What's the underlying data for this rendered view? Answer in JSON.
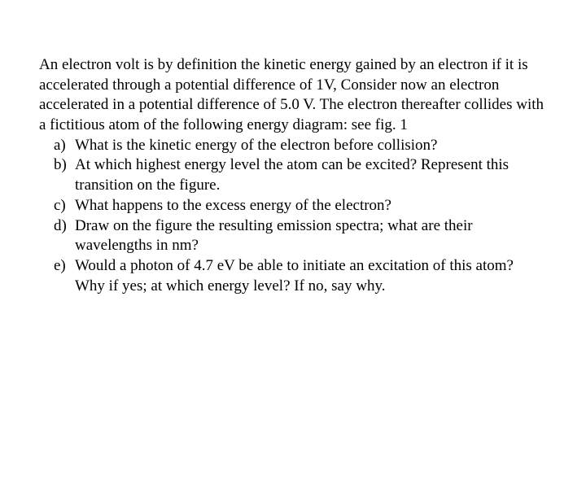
{
  "intro": "An electron volt is by definition the kinetic energy gained by an electron if it is accelerated through a potential difference of 1V, Consider now an electron accelerated in a potential difference of 5.0 V. The electron thereafter collides with a fictitious atom of the following energy diagram: see fig. 1",
  "items": {
    "a": {
      "marker": "a)",
      "text": "What is the kinetic energy of the electron before collision?"
    },
    "b": {
      "marker": "b)",
      "text": "At which highest energy level the atom can be excited? Represent this transition on the figure."
    },
    "c": {
      "marker": "c)",
      "text": "What happens to the excess energy of the electron?"
    },
    "d": {
      "marker": "d)",
      "text": "Draw on the figure the resulting emission spectra; what are their wavelengths in nm?"
    },
    "e": {
      "marker": "e)",
      "text": "Would a photon of 4.7 eV be able to initiate an excitation of this atom? Why if yes; at which energy level? If no, say why."
    }
  }
}
